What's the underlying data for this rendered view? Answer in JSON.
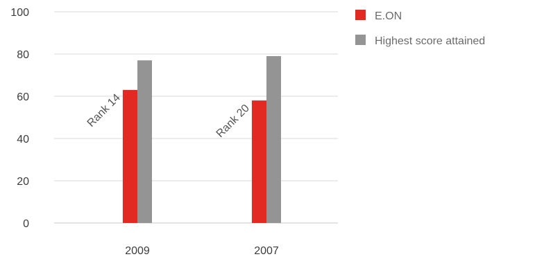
{
  "chart_data": {
    "type": "bar",
    "categories": [
      "2009",
      "2007"
    ],
    "series": [
      {
        "name": "E.ON",
        "values": [
          63,
          58
        ],
        "color": "#e32a22"
      },
      {
        "name": "Highest score attained",
        "values": [
          77,
          79
        ],
        "color": "#949494"
      }
    ],
    "annotations": [
      "Rank 14",
      "Rank 20"
    ],
    "ylim": [
      0,
      100
    ],
    "yticks": [
      0,
      20,
      40,
      60,
      80,
      100
    ],
    "title": "",
    "xlabel": "",
    "ylabel": "",
    "grid": true,
    "legend_position": "top-right",
    "colors": {
      "grid": "#d9d9d9",
      "baseline": "#c8c8c8"
    }
  }
}
